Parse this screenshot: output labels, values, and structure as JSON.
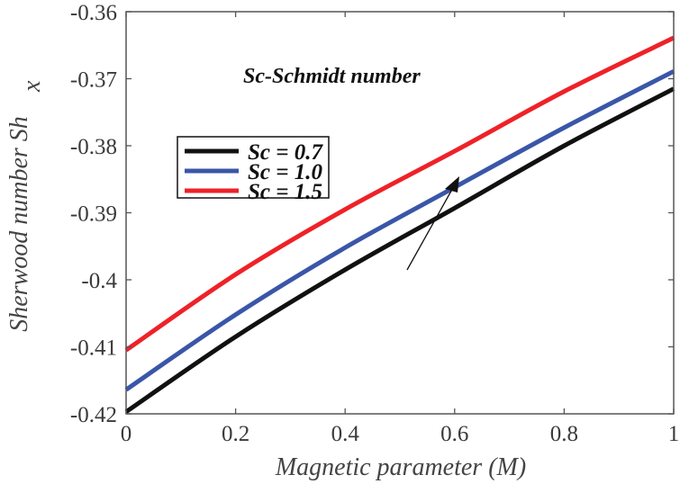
{
  "chart_data": {
    "type": "line",
    "title": "",
    "xlabel": "Magnetic parameter (M)",
    "ylabel": "Sherwood number Sh",
    "ylabel_subscript": "x",
    "xlim": [
      0,
      1
    ],
    "ylim": [
      -0.42,
      -0.36
    ],
    "xticks": [
      "0",
      "0.2",
      "0.4",
      "0.6",
      "0.8",
      "1"
    ],
    "yticks": [
      "-0.42",
      "-0.41",
      "-0.4",
      "-0.39",
      "-0.38",
      "-0.37",
      "-0.36"
    ],
    "x": [
      0,
      0.2,
      0.4,
      0.6,
      0.8,
      1.0
    ],
    "series": [
      {
        "name": "Sc = 0.7",
        "color": "#111111",
        "values": [
          -0.4197,
          -0.4085,
          -0.3985,
          -0.3893,
          -0.38,
          -0.3715
        ]
      },
      {
        "name": "Sc = 1.0",
        "color": "#3a56a8",
        "values": [
          -0.4164,
          -0.4052,
          -0.3952,
          -0.3862,
          -0.3773,
          -0.3689
        ]
      },
      {
        "name": "Sc = 1.5",
        "color": "#ee2228",
        "values": [
          -0.4105,
          -0.3992,
          -0.3895,
          -0.3808,
          -0.3719,
          -0.3639
        ]
      }
    ],
    "legend_placement": "upper-left",
    "annotation": "Sc-Schmidt number",
    "grid": false
  }
}
